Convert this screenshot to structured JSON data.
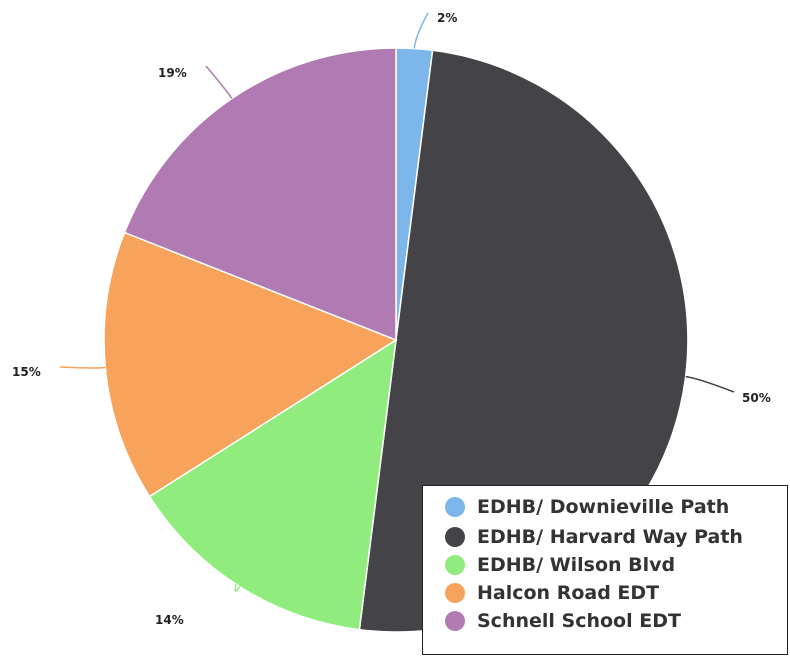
{
  "chart_data": {
    "type": "pie",
    "categories": [
      "EDHB/ Downieville Path",
      "EDHB/ Harvard Way Path",
      "EDHB/ Wilson Blvd",
      "Halcon Road EDT",
      "Schnell School EDT"
    ],
    "values": [
      2,
      50,
      14,
      15,
      19
    ],
    "labels": [
      "2%",
      "50%",
      "14%",
      "15%",
      "19%"
    ],
    "colors": [
      "#7db6ea",
      "#434348",
      "#90ed7d",
      "#f7a35c",
      "#b07ab3"
    ],
    "legend_position": "bottom-right",
    "title": ""
  }
}
